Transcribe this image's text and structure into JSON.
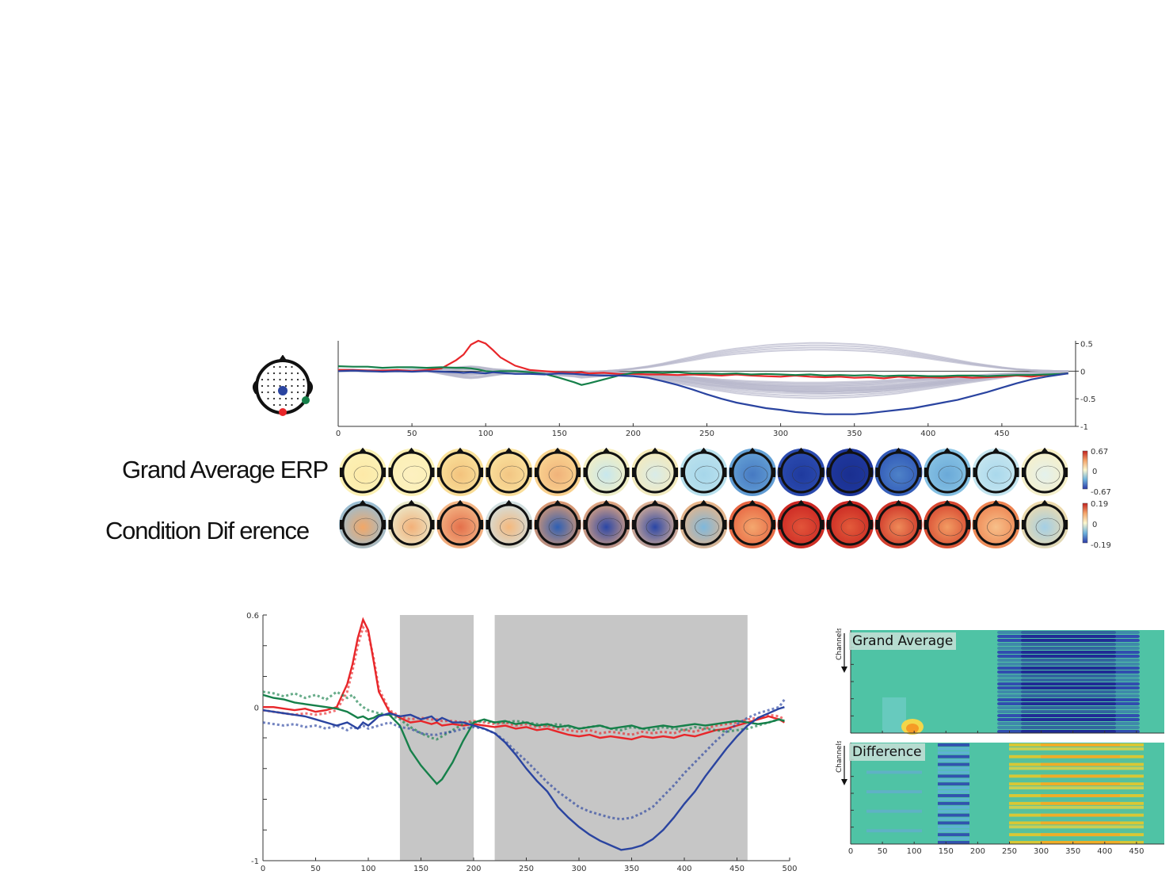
{
  "row_labels": {
    "grand_average": "Grand Average ERP",
    "difference": "Condition Dif erence"
  },
  "heatmap_panels": {
    "top_label": "Grand Average",
    "bottom_label": "Difference",
    "y_axis_label": "Channels",
    "x_ticks": [
      "0",
      "50",
      "100",
      "150",
      "200",
      "250",
      "300",
      "350",
      "400",
      "450"
    ]
  },
  "colorbars": {
    "grand_average": {
      "max": "0.67",
      "mid": "0",
      "min": "-0.67"
    },
    "difference": {
      "max": "0.19",
      "mid": "0",
      "min": "-0.19"
    }
  },
  "colors": {
    "red": "#e8262a",
    "green": "#16804a",
    "blue": "#2a44a0",
    "gray": "#b8b8cc",
    "shade": "#c6c6c6"
  },
  "chart_data": [
    {
      "type": "line",
      "title": "",
      "x": [
        0,
        10,
        20,
        30,
        40,
        50,
        60,
        70,
        80,
        85,
        90,
        95,
        100,
        105,
        110,
        120,
        130,
        140,
        150,
        160,
        165,
        170,
        180,
        190,
        200,
        210,
        220,
        230,
        240,
        250,
        260,
        270,
        280,
        290,
        300,
        310,
        320,
        330,
        340,
        350,
        360,
        370,
        380,
        390,
        400,
        410,
        420,
        430,
        440,
        450,
        460,
        470,
        480,
        490,
        495
      ],
      "xlim": [
        0,
        500
      ],
      "ylim": [
        -1,
        0.55
      ],
      "x_ticks": [
        "0",
        "50",
        "100",
        "150",
        "200",
        "250",
        "300",
        "350",
        "400",
        "450"
      ],
      "y_ticks": [
        "0.5",
        "0",
        "-0.5",
        "-1"
      ],
      "series": [
        {
          "color": "red",
          "values": [
            0.02,
            0.02,
            0.01,
            0.01,
            0.02,
            0.0,
            0.02,
            0.05,
            0.2,
            0.3,
            0.48,
            0.55,
            0.5,
            0.38,
            0.25,
            0.1,
            0.02,
            0.0,
            -0.02,
            -0.03,
            -0.02,
            -0.04,
            -0.03,
            -0.05,
            -0.05,
            -0.06,
            -0.06,
            -0.07,
            -0.06,
            -0.07,
            -0.08,
            -0.06,
            -0.08,
            -0.09,
            -0.1,
            -0.08,
            -0.1,
            -0.11,
            -0.1,
            -0.12,
            -0.11,
            -0.13,
            -0.1,
            -0.12,
            -0.11,
            -0.12,
            -0.1,
            -0.12,
            -0.11,
            -0.1,
            -0.08,
            -0.1,
            -0.07,
            -0.05,
            -0.04
          ]
        },
        {
          "color": "green",
          "values": [
            0.09,
            0.08,
            0.08,
            0.06,
            0.07,
            0.07,
            0.06,
            0.07,
            0.06,
            0.06,
            0.05,
            0.03,
            0.0,
            -0.01,
            0.0,
            0.0,
            -0.02,
            -0.05,
            -0.12,
            -0.2,
            -0.25,
            -0.22,
            -0.15,
            -0.08,
            -0.03,
            -0.02,
            -0.03,
            -0.02,
            -0.04,
            -0.04,
            -0.05,
            -0.04,
            -0.06,
            -0.05,
            -0.06,
            -0.07,
            -0.06,
            -0.08,
            -0.07,
            -0.08,
            -0.07,
            -0.09,
            -0.08,
            -0.08,
            -0.09,
            -0.09,
            -0.08,
            -0.08,
            -0.09,
            -0.08,
            -0.07,
            -0.07,
            -0.06,
            -0.05,
            -0.04
          ]
        },
        {
          "color": "blue",
          "values": [
            0.0,
            0.01,
            0.0,
            -0.01,
            0.0,
            -0.01,
            0.0,
            -0.01,
            -0.02,
            -0.03,
            -0.02,
            -0.03,
            -0.04,
            -0.02,
            -0.03,
            -0.05,
            -0.05,
            -0.06,
            -0.04,
            -0.05,
            -0.06,
            -0.07,
            -0.08,
            -0.08,
            -0.09,
            -0.12,
            -0.18,
            -0.25,
            -0.33,
            -0.42,
            -0.5,
            -0.57,
            -0.62,
            -0.67,
            -0.7,
            -0.74,
            -0.76,
            -0.78,
            -0.78,
            -0.78,
            -0.76,
            -0.73,
            -0.7,
            -0.67,
            -0.62,
            -0.57,
            -0.52,
            -0.45,
            -0.38,
            -0.3,
            -0.22,
            -0.15,
            -0.1,
            -0.06,
            -0.04
          ]
        }
      ],
      "gray_traces": [
        {
          "values": [
            0.03,
            0.03,
            0.02,
            0.02,
            0.02,
            0.03,
            0.03,
            0.05,
            0.07,
            0.08,
            0.09,
            0.08,
            0.06,
            0.04,
            0.03,
            0.01,
            0.0,
            -0.01,
            -0.02,
            -0.02,
            -0.02,
            -0.01,
            0.0,
            0.02,
            0.05,
            0.09,
            0.14,
            0.2,
            0.26,
            0.32,
            0.37,
            0.41,
            0.44,
            0.47,
            0.49,
            0.5,
            0.51,
            0.51,
            0.5,
            0.49,
            0.47,
            0.44,
            0.4,
            0.35,
            0.3,
            0.25,
            0.2,
            0.15,
            0.11,
            0.07,
            0.04,
            0.02,
            0.01,
            0.0,
            0.0
          ]
        },
        {
          "values": [
            0.01,
            0.01,
            0.0,
            0.01,
            0.0,
            0.0,
            0.0,
            -0.05,
            -0.1,
            -0.12,
            -0.13,
            -0.12,
            -0.1,
            -0.08,
            -0.06,
            -0.04,
            -0.03,
            -0.05,
            -0.08,
            -0.1,
            -0.12,
            -0.11,
            -0.09,
            -0.07,
            -0.09,
            -0.12,
            -0.17,
            -0.22,
            -0.27,
            -0.32,
            -0.36,
            -0.4,
            -0.43,
            -0.45,
            -0.47,
            -0.48,
            -0.49,
            -0.49,
            -0.48,
            -0.47,
            -0.45,
            -0.43,
            -0.4,
            -0.36,
            -0.32,
            -0.28,
            -0.24,
            -0.2,
            -0.16,
            -0.12,
            -0.08,
            -0.05,
            -0.03,
            -0.02,
            -0.02
          ]
        },
        {
          "values": [
            0.0,
            0.0,
            -0.01,
            0.0,
            -0.01,
            0.0,
            0.0,
            -0.03,
            -0.06,
            -0.07,
            -0.07,
            -0.06,
            -0.05,
            -0.04,
            -0.03,
            -0.02,
            -0.02,
            -0.03,
            -0.05,
            -0.06,
            -0.07,
            -0.07,
            -0.06,
            -0.05,
            -0.07,
            -0.09,
            -0.13,
            -0.17,
            -0.21,
            -0.25,
            -0.28,
            -0.31,
            -0.33,
            -0.35,
            -0.36,
            -0.37,
            -0.37,
            -0.37,
            -0.36,
            -0.35,
            -0.34,
            -0.32,
            -0.3,
            -0.27,
            -0.24,
            -0.21,
            -0.18,
            -0.15,
            -0.12,
            -0.09,
            -0.06,
            -0.04,
            -0.02,
            -0.01,
            -0.01
          ]
        },
        {
          "values": [
            0.02,
            0.02,
            0.01,
            0.02,
            0.01,
            0.01,
            0.02,
            0.02,
            0.03,
            0.04,
            0.04,
            0.04,
            0.03,
            0.03,
            0.02,
            0.01,
            0.0,
            -0.01,
            -0.02,
            -0.03,
            -0.03,
            -0.03,
            -0.02,
            -0.02,
            -0.03,
            -0.05,
            -0.08,
            -0.11,
            -0.14,
            -0.17,
            -0.2,
            -0.22,
            -0.24,
            -0.25,
            -0.26,
            -0.27,
            -0.27,
            -0.27,
            -0.26,
            -0.25,
            -0.24,
            -0.22,
            -0.2,
            -0.18,
            -0.16,
            -0.14,
            -0.12,
            -0.1,
            -0.08,
            -0.06,
            -0.04,
            -0.03,
            -0.02,
            -0.01,
            -0.01
          ]
        },
        {
          "values": [
            0.0,
            0.0,
            0.0,
            0.0,
            0.0,
            0.0,
            0.0,
            -0.02,
            -0.04,
            -0.05,
            -0.05,
            -0.04,
            -0.03,
            -0.03,
            -0.02,
            -0.01,
            -0.01,
            -0.02,
            -0.03,
            -0.04,
            -0.04,
            -0.04,
            -0.03,
            -0.03,
            -0.04,
            -0.06,
            -0.09,
            -0.12,
            -0.16,
            -0.2,
            -0.24,
            -0.28,
            -0.31,
            -0.34,
            -0.36,
            -0.38,
            -0.39,
            -0.4,
            -0.4,
            -0.39,
            -0.38,
            -0.36,
            -0.33,
            -0.3,
            -0.27,
            -0.24,
            -0.2,
            -0.16,
            -0.12,
            -0.09,
            -0.06,
            -0.04,
            -0.02,
            -0.01,
            0.0
          ]
        }
      ]
    },
    {
      "type": "line",
      "title": "",
      "x": [
        0,
        10,
        20,
        30,
        40,
        50,
        60,
        70,
        80,
        85,
        90,
        95,
        100,
        105,
        110,
        120,
        130,
        140,
        150,
        160,
        165,
        170,
        180,
        190,
        200,
        210,
        220,
        230,
        240,
        250,
        260,
        270,
        280,
        290,
        300,
        310,
        320,
        330,
        340,
        350,
        360,
        370,
        380,
        390,
        400,
        410,
        420,
        430,
        440,
        450,
        460,
        470,
        480,
        490,
        495
      ],
      "xlim": [
        0,
        500
      ],
      "ylim": [
        -1,
        0.6
      ],
      "x_ticks": [
        "0",
        "50",
        "100",
        "150",
        "200",
        "250",
        "300",
        "350",
        "400",
        "450",
        "500"
      ],
      "y_ticks": [
        "0.6",
        "0",
        "-1"
      ],
      "shaded_ranges": [
        [
          130,
          200
        ],
        [
          220,
          460
        ]
      ],
      "series": [
        {
          "color": "red",
          "style": "solid",
          "values": [
            0.0,
            0.0,
            -0.01,
            -0.02,
            -0.01,
            -0.03,
            -0.02,
            0.0,
            0.15,
            0.28,
            0.45,
            0.57,
            0.5,
            0.3,
            0.1,
            -0.03,
            -0.07,
            -0.1,
            -0.09,
            -0.11,
            -0.1,
            -0.12,
            -0.11,
            -0.12,
            -0.11,
            -0.12,
            -0.13,
            -0.12,
            -0.14,
            -0.13,
            -0.15,
            -0.14,
            -0.16,
            -0.18,
            -0.19,
            -0.18,
            -0.2,
            -0.19,
            -0.2,
            -0.21,
            -0.19,
            -0.2,
            -0.19,
            -0.2,
            -0.18,
            -0.19,
            -0.17,
            -0.15,
            -0.14,
            -0.12,
            -0.1,
            -0.08,
            -0.06,
            -0.08,
            -0.1
          ]
        },
        {
          "color": "red",
          "style": "dotted",
          "values": [
            -0.02,
            -0.03,
            -0.04,
            -0.05,
            -0.04,
            -0.05,
            -0.04,
            -0.02,
            0.1,
            0.24,
            0.4,
            0.52,
            0.48,
            0.32,
            0.12,
            -0.02,
            -0.06,
            -0.08,
            -0.07,
            -0.08,
            -0.08,
            -0.09,
            -0.09,
            -0.1,
            -0.09,
            -0.1,
            -0.11,
            -0.1,
            -0.12,
            -0.11,
            -0.13,
            -0.12,
            -0.14,
            -0.15,
            -0.16,
            -0.15,
            -0.17,
            -0.16,
            -0.17,
            -0.18,
            -0.16,
            -0.17,
            -0.16,
            -0.17,
            -0.15,
            -0.16,
            -0.14,
            -0.12,
            -0.11,
            -0.1,
            -0.08,
            -0.07,
            -0.05,
            -0.06,
            -0.08
          ]
        },
        {
          "color": "green",
          "style": "solid",
          "values": [
            0.08,
            0.06,
            0.05,
            0.03,
            0.02,
            0.01,
            0.0,
            -0.01,
            -0.03,
            -0.05,
            -0.07,
            -0.06,
            -0.08,
            -0.07,
            -0.05,
            -0.05,
            -0.12,
            -0.28,
            -0.38,
            -0.46,
            -0.5,
            -0.47,
            -0.36,
            -0.22,
            -0.1,
            -0.08,
            -0.1,
            -0.09,
            -0.11,
            -0.1,
            -0.12,
            -0.11,
            -0.13,
            -0.12,
            -0.14,
            -0.13,
            -0.12,
            -0.14,
            -0.13,
            -0.12,
            -0.14,
            -0.13,
            -0.12,
            -0.13,
            -0.12,
            -0.11,
            -0.12,
            -0.11,
            -0.1,
            -0.09,
            -0.1,
            -0.11,
            -0.1,
            -0.08,
            -0.09
          ]
        },
        {
          "color": "green",
          "style": "dotted",
          "values": [
            0.1,
            0.09,
            0.07,
            0.09,
            0.06,
            0.08,
            0.05,
            0.1,
            0.06,
            0.08,
            0.03,
            0.0,
            -0.02,
            -0.03,
            -0.04,
            -0.05,
            -0.08,
            -0.13,
            -0.17,
            -0.2,
            -0.21,
            -0.19,
            -0.15,
            -0.11,
            -0.1,
            -0.09,
            -0.1,
            -0.1,
            -0.09,
            -0.1,
            -0.11,
            -0.12,
            -0.11,
            -0.13,
            -0.14,
            -0.13,
            -0.12,
            -0.14,
            -0.15,
            -0.13,
            -0.14,
            -0.15,
            -0.13,
            -0.14,
            -0.15,
            -0.13,
            -0.14,
            -0.15,
            -0.16,
            -0.15,
            -0.14,
            -0.12,
            -0.1,
            -0.08,
            -0.09
          ]
        },
        {
          "color": "blue",
          "style": "solid",
          "values": [
            -0.02,
            -0.03,
            -0.04,
            -0.05,
            -0.06,
            -0.08,
            -0.1,
            -0.12,
            -0.1,
            -0.12,
            -0.14,
            -0.1,
            -0.12,
            -0.09,
            -0.06,
            -0.04,
            -0.06,
            -0.05,
            -0.08,
            -0.06,
            -0.09,
            -0.07,
            -0.1,
            -0.1,
            -0.12,
            -0.14,
            -0.17,
            -0.23,
            -0.31,
            -0.4,
            -0.48,
            -0.55,
            -0.65,
            -0.72,
            -0.78,
            -0.83,
            -0.87,
            -0.9,
            -0.93,
            -0.92,
            -0.9,
            -0.86,
            -0.8,
            -0.72,
            -0.63,
            -0.55,
            -0.45,
            -0.36,
            -0.27,
            -0.19,
            -0.12,
            -0.07,
            -0.04,
            -0.01,
            0.0
          ]
        },
        {
          "color": "blue",
          "style": "dotted",
          "values": [
            -0.1,
            -0.11,
            -0.12,
            -0.11,
            -0.13,
            -0.12,
            -0.14,
            -0.12,
            -0.15,
            -0.13,
            -0.14,
            -0.12,
            -0.14,
            -0.13,
            -0.12,
            -0.1,
            -0.13,
            -0.14,
            -0.17,
            -0.18,
            -0.18,
            -0.17,
            -0.16,
            -0.14,
            -0.13,
            -0.14,
            -0.17,
            -0.22,
            -0.29,
            -0.35,
            -0.42,
            -0.49,
            -0.55,
            -0.6,
            -0.65,
            -0.68,
            -0.7,
            -0.72,
            -0.73,
            -0.72,
            -0.69,
            -0.65,
            -0.58,
            -0.51,
            -0.43,
            -0.36,
            -0.29,
            -0.22,
            -0.16,
            -0.11,
            -0.07,
            -0.04,
            -0.02,
            0.0,
            0.05
          ]
        }
      ]
    }
  ]
}
